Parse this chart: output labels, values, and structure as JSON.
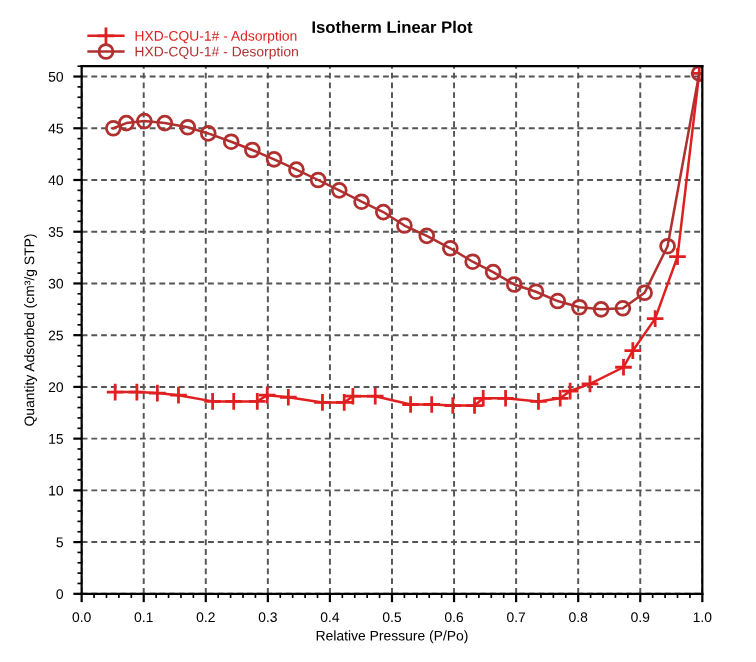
{
  "chart_data": {
    "type": "line",
    "title": "Isotherm Linear Plot",
    "xlabel": "Relative Pressure (P/Po)",
    "ylabel": "Quantity Adsorbed (cm³/g STP)",
    "series": [
      {
        "name": "HXD-CQU-1# - Adsorption",
        "color": "#e02020",
        "marker": "cross",
        "x": [
          0.054,
          0.089,
          0.122,
          0.156,
          0.211,
          0.245,
          0.283,
          0.299,
          0.333,
          0.388,
          0.423,
          0.437,
          0.473,
          0.53,
          0.564,
          0.598,
          0.633,
          0.647,
          0.683,
          0.736,
          0.771,
          0.787,
          0.819,
          0.873,
          0.888,
          0.924,
          0.96,
          0.995
        ],
        "values": [
          19.5,
          19.5,
          19.4,
          19.2,
          18.6,
          18.6,
          18.6,
          19.2,
          19.0,
          18.5,
          18.5,
          19.1,
          19.1,
          18.3,
          18.3,
          18.2,
          18.2,
          18.9,
          18.9,
          18.6,
          18.9,
          19.6,
          20.3,
          21.9,
          23.5,
          26.6,
          32.6,
          50.3
        ]
      },
      {
        "name": "HXD-CQU-1# - Desorption",
        "color": "#b03030",
        "marker": "circle",
        "x": [
          0.995,
          0.944,
          0.907,
          0.872,
          0.837,
          0.802,
          0.767,
          0.732,
          0.697,
          0.663,
          0.63,
          0.594,
          0.556,
          0.52,
          0.486,
          0.451,
          0.415,
          0.381,
          0.346,
          0.31,
          0.275,
          0.241,
          0.204,
          0.171,
          0.134,
          0.101,
          0.072,
          0.051
        ],
        "values": [
          50.3,
          33.6,
          29.1,
          27.6,
          27.5,
          27.7,
          28.3,
          29.2,
          29.9,
          31.1,
          32.1,
          33.4,
          34.6,
          35.6,
          36.9,
          37.9,
          39.0,
          40.0,
          41.0,
          42.0,
          42.9,
          43.7,
          44.5,
          45.1,
          45.5,
          45.7,
          45.5,
          45.0
        ]
      }
    ],
    "xlim": [
      0,
      1.0
    ],
    "xticks": [
      {
        "value": 0,
        "label": "0.0"
      },
      0.1,
      0.2,
      0.3,
      0.4,
      0.5,
      0.6,
      0.7,
      0.8,
      0.9,
      {
        "value": 1.0,
        "label": "1.0"
      }
    ],
    "ylim": [
      0,
      51
    ],
    "yticks": [
      0,
      5,
      10,
      15,
      20,
      25,
      30,
      35,
      40,
      45,
      50
    ],
    "grid": true,
    "legend": "top left",
    "line_style": "solid"
  }
}
